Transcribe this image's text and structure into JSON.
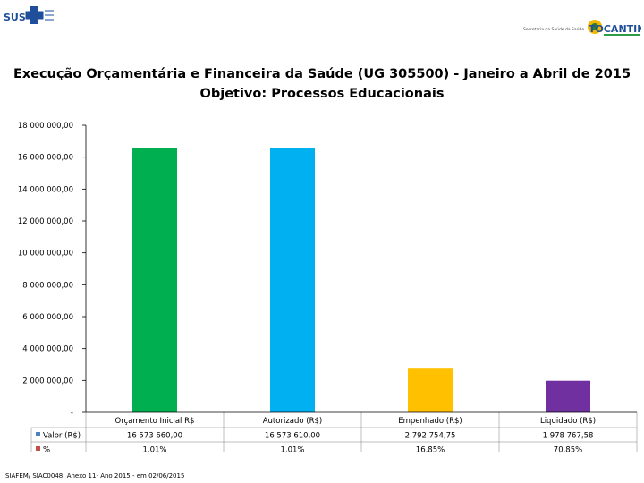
{
  "logos": {
    "left_text": "SUS",
    "right_small": "Secretaria da Saúde da Saúde",
    "right_big": "TOCANTINS"
  },
  "title_line1": "Execução Orçamentária e Financeira da Saúde (UG 305500) - Janeiro a Abril de 2015",
  "title_line2": "Objetivo: Processos Educacionais",
  "source": "SIAFEM/ SIAC0048. Anexo 11- Ano 2015 - em 02/06/2015",
  "chart_data": {
    "type": "bar",
    "categories": [
      "Orçamento Inicial R$",
      "Autorizado (R$)",
      "Empenhado (R$)",
      "Liquidado (R$)"
    ],
    "values": [
      16573660,
      16573610,
      2792754.75,
      1978767.58
    ],
    "colors": [
      "#00b050",
      "#00b0f0",
      "#ffc000",
      "#7030a0"
    ],
    "ylim": [
      0,
      18000000
    ],
    "yticks": [
      0,
      2000000,
      4000000,
      6000000,
      8000000,
      10000000,
      12000000,
      14000000,
      16000000,
      18000000
    ],
    "ytick_labels": [
      "-",
      "2 000 000,00",
      "4 000 000,00",
      "6 000 000,00",
      "8 000 000,00",
      "10 000 000,00",
      "12 000 000,00",
      "14 000 000,00",
      "16 000 000,00",
      "18 000 000,00"
    ],
    "table": {
      "rows": [
        {
          "label": "Valor (R$)",
          "marker_color": "#4f81bd",
          "values": [
            "16 573 660,00",
            "16 573 610,00",
            "2 792 754,75",
            "1 978 767,58"
          ]
        },
        {
          "label": "%",
          "marker_color": "#c0504d",
          "values": [
            "1,01%",
            "1,01%",
            "16,85%",
            "70,85%"
          ]
        }
      ]
    },
    "grid": false,
    "legend": "data table below chart"
  }
}
